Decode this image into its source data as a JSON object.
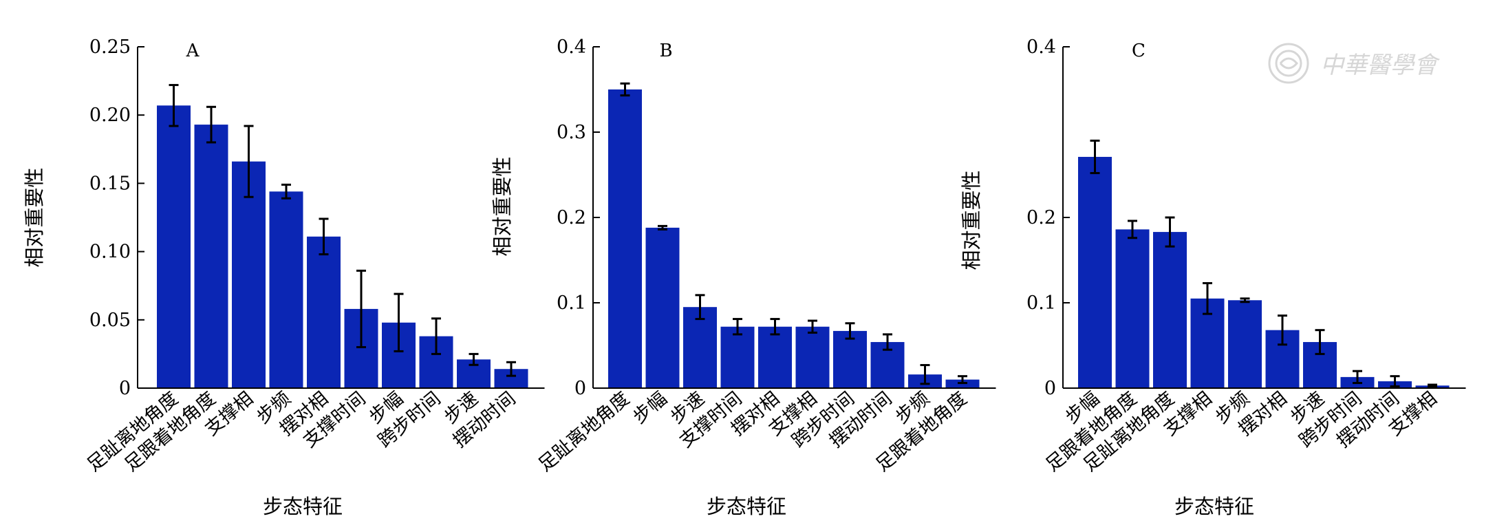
{
  "chart_data": [
    {
      "type": "bar",
      "title": "A",
      "xlabel": "步态特征",
      "ylabel": "相对重要性",
      "ylim": [
        0,
        0.25
      ],
      "yticks": [
        "0",
        "0.05",
        "0.10",
        "0.15",
        "0.20",
        "0.25"
      ],
      "categories": [
        "足趾离地角度",
        "足跟着地角度",
        "支撑相",
        "步频",
        "摆对相",
        "支撑时间",
        "步幅",
        "跨步时间",
        "步速",
        "摆动时间"
      ],
      "values": [
        0.207,
        0.193,
        0.166,
        0.144,
        0.111,
        0.058,
        0.048,
        0.038,
        0.021,
        0.014
      ],
      "errors": [
        0.015,
        0.013,
        0.026,
        0.005,
        0.013,
        0.028,
        0.021,
        0.013,
        0.004,
        0.005
      ],
      "bar_color": "#0b26b4"
    },
    {
      "type": "bar",
      "title": "B",
      "xlabel": "步态特征",
      "ylabel": "相对重要性",
      "ylim": [
        0,
        0.4
      ],
      "yticks": [
        "0",
        "0.1",
        "0.2",
        "0.3",
        "0.4"
      ],
      "categories": [
        "足趾离地角度",
        "步幅",
        "步速",
        "支撑时间",
        "摆对相",
        "支撑相",
        "跨步时间",
        "摆动时间",
        "步频",
        "足跟着地角度"
      ],
      "values": [
        0.35,
        0.188,
        0.095,
        0.072,
        0.072,
        0.072,
        0.067,
        0.054,
        0.016,
        0.01
      ],
      "errors": [
        0.007,
        0.002,
        0.014,
        0.009,
        0.009,
        0.007,
        0.009,
        0.009,
        0.011,
        0.004
      ],
      "bar_color": "#0b26b4"
    },
    {
      "type": "bar",
      "title": "C",
      "xlabel": "步态特征",
      "ylabel": "相对重要性",
      "ylim": [
        0,
        0.4
      ],
      "yticks": [
        "0",
        "0.1",
        "0.2",
        "0.4"
      ],
      "categories": [
        "步幅",
        "足跟着地角度",
        "足趾离地角度",
        "支撑相",
        "步频",
        "摆对相",
        "步速",
        "跨步时间",
        "摆动时间",
        "支撑相"
      ],
      "values": [
        0.271,
        0.186,
        0.183,
        0.105,
        0.103,
        0.068,
        0.054,
        0.013,
        0.008,
        0.003
      ],
      "errors": [
        0.019,
        0.01,
        0.017,
        0.018,
        0.002,
        0.017,
        0.014,
        0.007,
        0.006,
        0.001
      ],
      "bar_color": "#0b26b4"
    }
  ],
  "watermark": {
    "text": "中華醫學會",
    "icon": "society-seal-icon"
  }
}
